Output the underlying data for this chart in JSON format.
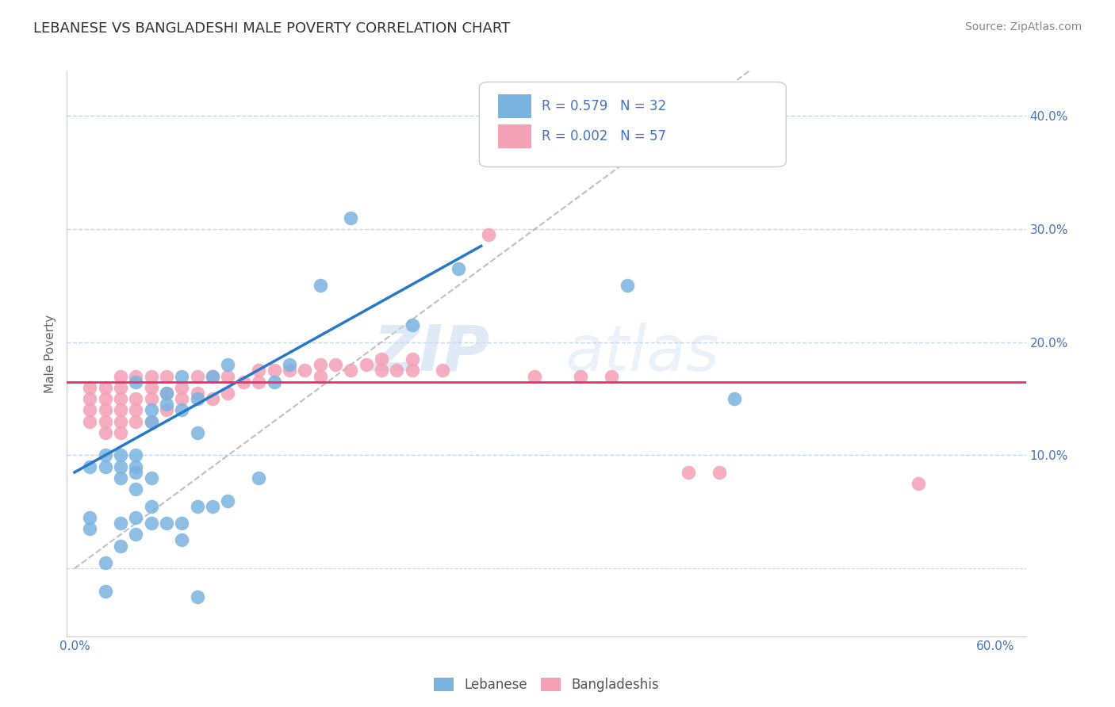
{
  "title": "LEBANESE VS BANGLADESHI MALE POVERTY CORRELATION CHART",
  "source": "Source: ZipAtlas.com",
  "ylabel": "Male Poverty",
  "xlim": [
    -0.005,
    0.62
  ],
  "ylim": [
    -0.06,
    0.44
  ],
  "xticks": [
    0.0,
    0.1,
    0.2,
    0.3,
    0.4,
    0.5,
    0.6
  ],
  "yticks": [
    0.1,
    0.2,
    0.3,
    0.4
  ],
  "xticklabels": [
    "0.0%",
    "",
    "",
    "",
    "",
    "",
    "60.0%"
  ],
  "yticklabels_right": [
    "10.0%",
    "20.0%",
    "30.0%",
    "40.0%"
  ],
  "R_leb": 0.579,
  "N_leb": 32,
  "R_ban": 0.002,
  "N_ban": 57,
  "leb_color": "#7ab3e0",
  "ban_color": "#f4a0b5",
  "leb_line_color": "#2878c8",
  "ban_line_color": "#e8306e",
  "tick_color": "#4472c4",
  "grid_color": "#c8d4e8",
  "ban_hline_y": 0.165,
  "leb_line_x0": 0.0,
  "leb_line_y0": 0.085,
  "leb_line_x1": 0.265,
  "leb_line_y1": 0.285,
  "leb_x": [
    0.01,
    0.02,
    0.02,
    0.03,
    0.03,
    0.03,
    0.04,
    0.04,
    0.04,
    0.04,
    0.04,
    0.05,
    0.05,
    0.05,
    0.06,
    0.06,
    0.07,
    0.07,
    0.08,
    0.09,
    0.1,
    0.12,
    0.13,
    0.14,
    0.16,
    0.18,
    0.22,
    0.25,
    0.27,
    0.36,
    0.43,
    0.08
  ],
  "leb_y": [
    0.09,
    0.09,
    0.1,
    0.08,
    0.09,
    0.1,
    0.07,
    0.085,
    0.09,
    0.1,
    0.165,
    0.08,
    0.13,
    0.14,
    0.145,
    0.155,
    0.14,
    0.17,
    0.15,
    0.17,
    0.18,
    0.08,
    0.165,
    0.18,
    0.25,
    0.31,
    0.215,
    0.265,
    0.37,
    0.25,
    0.15,
    0.12
  ],
  "ban_x": [
    0.01,
    0.01,
    0.01,
    0.01,
    0.02,
    0.02,
    0.02,
    0.02,
    0.02,
    0.03,
    0.03,
    0.03,
    0.03,
    0.03,
    0.03,
    0.04,
    0.04,
    0.04,
    0.04,
    0.05,
    0.05,
    0.05,
    0.05,
    0.06,
    0.06,
    0.06,
    0.07,
    0.07,
    0.08,
    0.08,
    0.09,
    0.09,
    0.1,
    0.1,
    0.11,
    0.12,
    0.12,
    0.13,
    0.14,
    0.15,
    0.16,
    0.16,
    0.17,
    0.18,
    0.19,
    0.2,
    0.2,
    0.21,
    0.22,
    0.22,
    0.24,
    0.27,
    0.3,
    0.33,
    0.35,
    0.4,
    0.55
  ],
  "ban_y": [
    0.13,
    0.14,
    0.15,
    0.16,
    0.12,
    0.13,
    0.14,
    0.15,
    0.16,
    0.12,
    0.13,
    0.14,
    0.15,
    0.16,
    0.17,
    0.13,
    0.14,
    0.15,
    0.17,
    0.13,
    0.15,
    0.16,
    0.17,
    0.14,
    0.155,
    0.17,
    0.15,
    0.16,
    0.155,
    0.17,
    0.15,
    0.17,
    0.155,
    0.17,
    0.165,
    0.165,
    0.175,
    0.175,
    0.175,
    0.175,
    0.17,
    0.18,
    0.18,
    0.175,
    0.18,
    0.175,
    0.185,
    0.175,
    0.175,
    0.185,
    0.175,
    0.295,
    0.17,
    0.17,
    0.17,
    0.085,
    0.075
  ],
  "extra_ban_x": [
    0.42
  ],
  "extra_ban_y": [
    0.085
  ],
  "extra_leb_below_x": [
    0.01,
    0.01,
    0.02,
    0.02,
    0.03,
    0.03,
    0.04,
    0.04,
    0.05,
    0.05,
    0.06,
    0.07,
    0.07,
    0.08,
    0.08,
    0.09,
    0.1
  ],
  "extra_leb_below_y": [
    0.035,
    0.045,
    -0.02,
    0.005,
    0.02,
    0.04,
    0.03,
    0.045,
    0.04,
    0.055,
    0.04,
    0.025,
    0.04,
    -0.025,
    0.055,
    0.055,
    0.06
  ]
}
